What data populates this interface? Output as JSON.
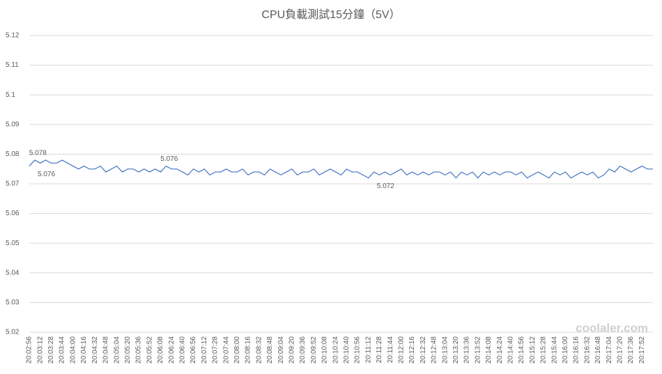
{
  "chart_data": {
    "type": "line",
    "title": "CPU負載測試15分鐘（5V）",
    "categories": [
      "20:02:56",
      null,
      "20:03:12",
      null,
      "20:03:28",
      null,
      "20:03:44",
      null,
      "20:04:00",
      null,
      "20:04:16",
      null,
      "20:04:32",
      null,
      "20:04:48",
      null,
      "20:05:04",
      null,
      "20:05:20",
      null,
      "20:05:36",
      null,
      "20:05:52",
      null,
      "20:06:08",
      null,
      "20:06:24",
      null,
      "20:06:40",
      null,
      "20:06:56",
      null,
      "20:07:12",
      null,
      "20:07:28",
      null,
      "20:07:44",
      null,
      "20:08:00",
      null,
      "20:08:16",
      null,
      "20:08:32",
      null,
      "20:08:48",
      null,
      "20:09:04",
      null,
      "20:09:20",
      null,
      "20:09:36",
      null,
      "20:09:52",
      null,
      "20:10:08",
      null,
      "20:10:24",
      null,
      "20:10:40",
      null,
      "20:10:56",
      null,
      "20:11:12",
      null,
      "20:11:28",
      null,
      "20:11:44",
      null,
      "20:12:00",
      null,
      "20:12:16",
      null,
      "20:12:32",
      null,
      "20:12:48",
      null,
      "20:13:04",
      null,
      "20:13:20",
      null,
      "20:13:36",
      null,
      "20:13:52",
      null,
      "20:14:08",
      null,
      "20:14:24",
      null,
      "20:14:40",
      null,
      "20:14:56",
      null,
      "20:15:12",
      null,
      "20:15:28",
      null,
      "20:15:44",
      null,
      "20:16:00",
      null,
      "20:16:16",
      null,
      "20:16:32",
      null,
      "20:16:48",
      null,
      "20:17:04",
      null,
      "20:17:20",
      null,
      "20:17:36",
      null,
      "20:17:52",
      null,
      null
    ],
    "values": [
      5.076,
      5.078,
      5.077,
      5.078,
      5.077,
      5.077,
      5.078,
      5.077,
      5.076,
      5.075,
      5.076,
      5.075,
      5.075,
      5.076,
      5.074,
      5.075,
      5.076,
      5.074,
      5.075,
      5.075,
      5.074,
      5.075,
      5.074,
      5.075,
      5.074,
      5.076,
      5.075,
      5.075,
      5.074,
      5.073,
      5.075,
      5.074,
      5.075,
      5.073,
      5.074,
      5.074,
      5.075,
      5.074,
      5.074,
      5.075,
      5.073,
      5.074,
      5.074,
      5.073,
      5.075,
      5.074,
      5.073,
      5.074,
      5.075,
      5.073,
      5.074,
      5.074,
      5.075,
      5.073,
      5.074,
      5.075,
      5.074,
      5.073,
      5.075,
      5.074,
      5.074,
      5.073,
      5.072,
      5.074,
      5.073,
      5.074,
      5.073,
      5.074,
      5.075,
      5.073,
      5.074,
      5.073,
      5.074,
      5.073,
      5.074,
      5.074,
      5.073,
      5.074,
      5.072,
      5.074,
      5.073,
      5.074,
      5.072,
      5.074,
      5.073,
      5.074,
      5.073,
      5.074,
      5.074,
      5.073,
      5.074,
      5.072,
      5.073,
      5.074,
      5.073,
      5.072,
      5.074,
      5.073,
      5.074,
      5.072,
      5.073,
      5.074,
      5.073,
      5.074,
      5.072,
      5.073,
      5.075,
      5.074,
      5.076,
      5.075,
      5.074,
      5.075,
      5.076,
      5.075,
      5.075
    ],
    "value_labels": [
      "5.076",
      "5.078",
      null,
      null,
      null,
      null,
      null,
      null,
      null,
      null,
      null,
      null,
      null,
      null,
      null,
      null,
      null,
      null,
      null,
      null,
      null,
      null,
      null,
      null,
      null,
      "5.076",
      null,
      null,
      null,
      null,
      null,
      null,
      null,
      null,
      null,
      null,
      null,
      null,
      null,
      null,
      null,
      null,
      null,
      null,
      null,
      null,
      null,
      null,
      null,
      null,
      null,
      null,
      null,
      null,
      null,
      null,
      null,
      null,
      null,
      null,
      null,
      null,
      "5.072",
      null,
      null,
      null,
      null,
      null,
      null,
      null,
      null,
      null,
      null,
      null,
      null,
      null,
      null,
      null,
      null,
      null,
      null,
      null,
      null,
      null,
      null,
      null,
      null,
      null,
      null,
      null,
      null,
      null,
      null,
      null,
      null,
      null,
      null,
      null,
      null,
      null,
      null,
      null,
      null,
      null,
      null,
      null,
      null,
      null,
      null,
      null,
      null,
      null,
      null,
      null,
      null
    ],
    "color": "#4472c4",
    "ylim": [
      5.02,
      5.12
    ],
    "yticks": [
      5.02,
      5.03,
      5.04,
      5.05,
      5.06,
      5.07,
      5.08,
      5.09,
      5.1,
      5.11,
      5.12
    ],
    "grid": true
  },
  "watermark": "coolaler.com"
}
